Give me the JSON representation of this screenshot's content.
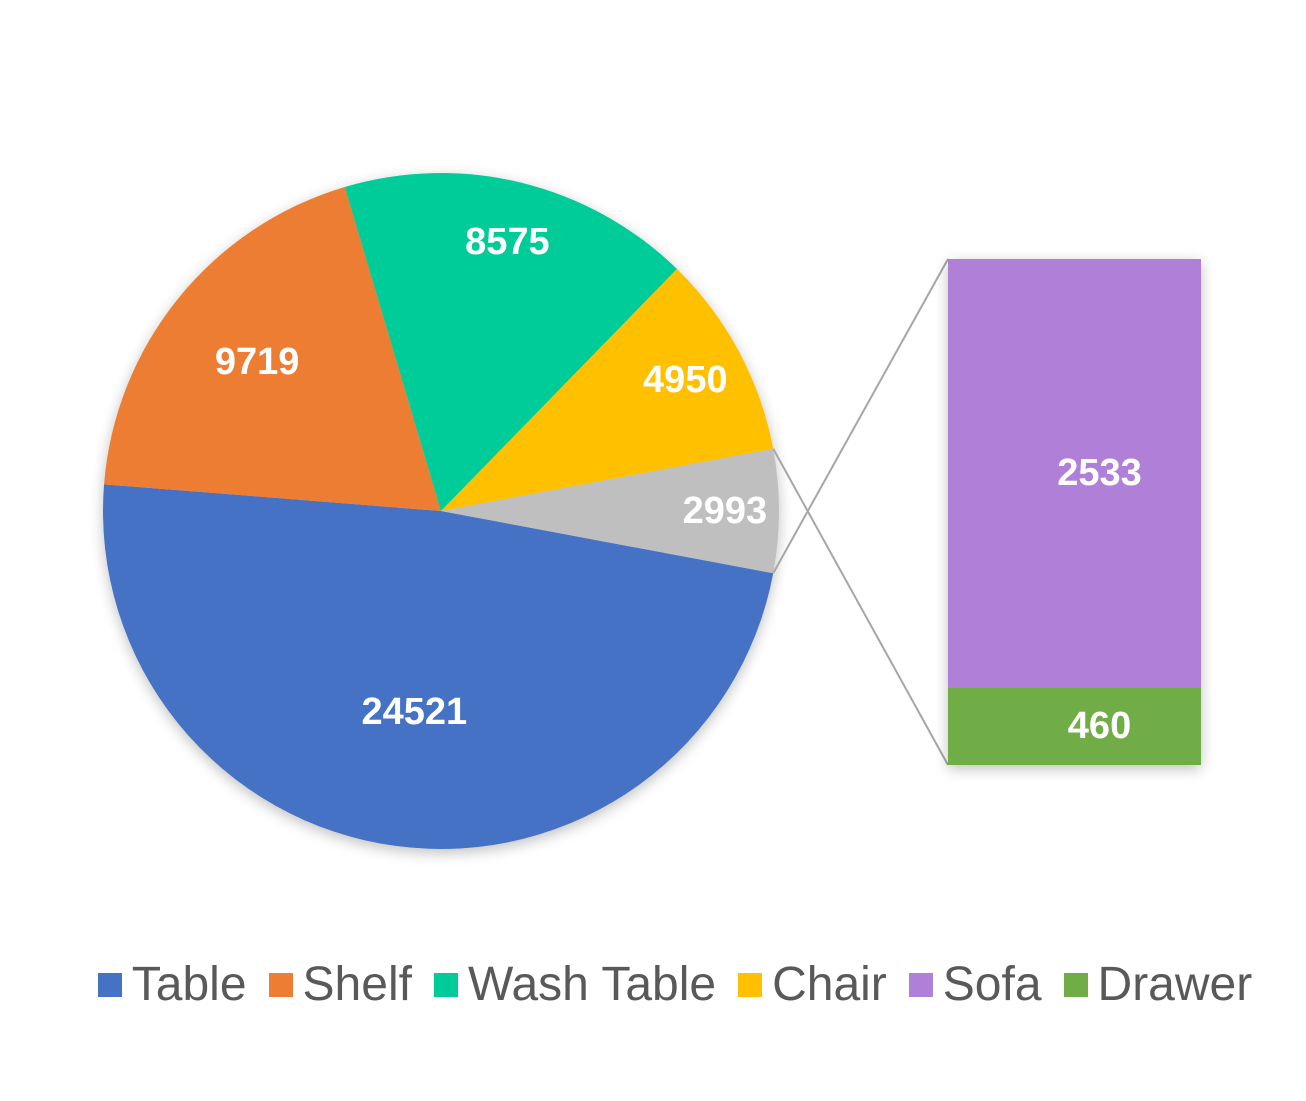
{
  "chart_data": {
    "type": "pie",
    "subtype": "bar-of-pie",
    "title": "",
    "slices": [
      {
        "name": "Table",
        "value": 24521,
        "color": "#4472C4"
      },
      {
        "name": "Shelf",
        "value": 9719,
        "color": "#ED7D31"
      },
      {
        "name": "Wash Table",
        "value": 8575,
        "color": "#00CC99"
      },
      {
        "name": "Chair",
        "value": 4950,
        "color": "#FFC000"
      },
      {
        "name": "",
        "value": 2993,
        "color": "#BFBFBF"
      }
    ],
    "secondary_bar": [
      {
        "name": "Sofa",
        "value": 2533,
        "color": "#B07FD8"
      },
      {
        "name": "Drawer",
        "value": 460,
        "color": "#70AD47"
      }
    ],
    "legend": {
      "position": "bottom",
      "items": [
        {
          "label": "Table",
          "color": "#4472C4"
        },
        {
          "label": "Shelf",
          "color": "#ED7D31"
        },
        {
          "label": "Wash Table",
          "color": "#00CC99"
        },
        {
          "label": "Chair",
          "color": "#FFC000"
        },
        {
          "label": "Sofa",
          "color": "#B07FD8"
        },
        {
          "label": "Drawer",
          "color": "#70AD47"
        }
      ]
    },
    "data_labels": true,
    "connector_color": "#A6A6A6"
  }
}
